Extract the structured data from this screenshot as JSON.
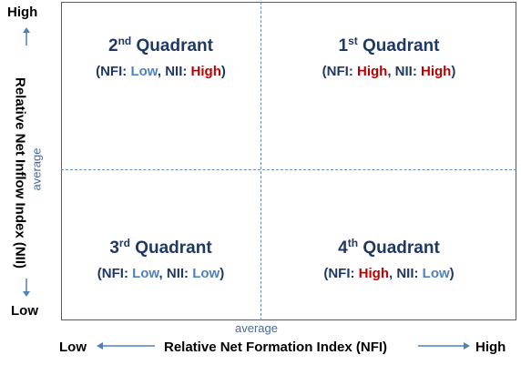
{
  "y_axis": {
    "high": "High",
    "low": "Low",
    "title": "Relative Net Inflow Index (NII)",
    "average": "average"
  },
  "x_axis": {
    "low": "Low",
    "high": "High",
    "title": "Relative Net Formation Index (NFI)",
    "average": "average"
  },
  "quadrants": {
    "q2": {
      "num": "2",
      "suffix": "nd",
      "word": "Quadrant",
      "open": "(NFI: ",
      "nfi": "Low",
      "mid": ", NII: ",
      "nii": "High",
      "close": ")"
    },
    "q1": {
      "num": "1",
      "suffix": "st",
      "word": "Quadrant",
      "open": "(NFI: ",
      "nfi": "High",
      "mid": ", NII: ",
      "nii": "High",
      "close": ")"
    },
    "q3": {
      "num": "3",
      "suffix": "rd",
      "word": "Quadrant",
      "open": "(NFI: ",
      "nfi": "Low",
      "mid": ", NII: ",
      "nii": "Low",
      "close": ")"
    },
    "q4": {
      "num": "4",
      "suffix": "th",
      "word": "Quadrant",
      "open": "(NFI: ",
      "nfi": "High",
      "mid": ", NII: ",
      "nii": "Low",
      "close": ")"
    }
  },
  "colors": {
    "title": "#1f3864",
    "low_value": "#4f81bd",
    "high_value": "#c00000",
    "divider": "#6b8cc0"
  }
}
